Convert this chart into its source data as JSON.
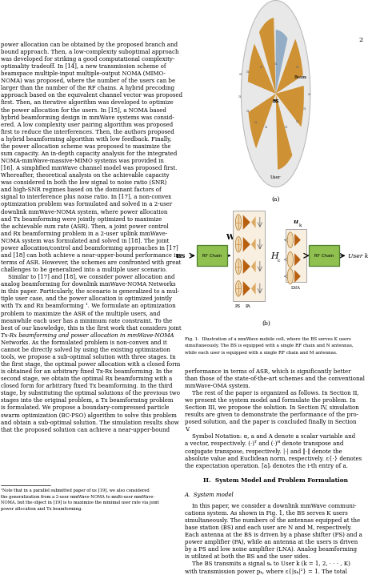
{
  "page_bg": "#ffffff",
  "page_number": "2",
  "left_col_lines": [
    "power allocation can be obtained by the proposed branch and",
    "bound approach. Then, a low-complexity suboptimal approach",
    "was developed for striking a good computational complexity-",
    "optimality tradeoff. In [14], a new transmission scheme of",
    "beamspace multiple-input multiple-output NOMA (MIMO-",
    "NOMA) was proposed, where the number of the users can be",
    "larger than the number of the RF chains. A hybrid precoding",
    "approach based on the equivalent channel vector was proposed",
    "first. Then, an iterative algorithm was developed to optimize",
    "the power allocation for the users. In [15], a NOMA based",
    "hybrid beamforming design in mmWave systems was consid-",
    "ered. A low complexity user pairing algorithm was proposed",
    "first to reduce the interferences. Then, the authors proposed",
    "a hybrid beamforming algorithm with low feedback. Finally,",
    "the power allocation scheme was proposed to maximize the",
    "sum capacity. An in-depth capacity analysis for the integrated",
    "NOMA-mmWave-massive-MIMO systems was provided in",
    "[16]. A simplified mmWave channel model was proposed first.",
    "Whereafter, theoretical analysis on the achievable capacity",
    "was considered in both the low signal to noise ratio (SNR)",
    "and high-SNR regimes based on the dominant factors of",
    "signal to interference plus noise ratio. In [17], a non-convex",
    "optimization problem was formulated and solved in a 2-user",
    "downlink mmWave-NOMA system, where power allocation",
    "and Tx beamforming were jointly optimized to maximize",
    "the achievable sum rate (ASR). Then, a joint power control",
    "and Rx beamforming problem in a 2-user uplink mmWave-",
    "NOMA system was formulated and solved in [18]. The joint",
    "power allocation/control and beamforming approaches in [17]",
    "and [18] can both achieve a near-upper-bound performance in",
    "terms of ASR. However, the schemes are confronted with great",
    "challenges to be generalized into a multiple user scenario.",
    "    Similar to [17] and [18], we consider power allocation and",
    "analog beamforming for downlink mmWave-NOMA Networks",
    "in this paper. Particularly, the scenario is generalized to a mul-",
    "tiple user case, and the power allocation is optimized jointly",
    "with Tx and Rx beamforming ¹. We formulate an optimization",
    "problem to maximize the ASR of the multiple users, and",
    "meanwhile each user has a minimum rate constraint. To the",
    "best of our knowledge, this is the first work that considers joint",
    "Tx-Rx beamforming and power allocation in mmWave-NOMA",
    "Networks. As the formulated problem is non-convex and it",
    "cannot be directly solved by using the existing optimization",
    "tools, we propose a sub-optimal solution with three stages. In",
    "the first stage, the optimal power allocation with a closed form",
    "is obtained for an arbitrary fixed Tx-Rx beamforming. In the",
    "second stage, we obtain the optimal Rx beamforming with a",
    "closed form for arbitrary fixed Tx beamforming. In the third",
    "stage, by substituting the optimal solutions of the previous two",
    "stages into the original problem, a Tx beamforming problem",
    "is formulated. We propose a boundary-compressed particle",
    "swarm optimization (BC-PSO) algorithm to solve this problem",
    "and obtain a sub-optimal solution. The simulation results show",
    "that the proposed solution can achieve a near-upper-bound"
  ],
  "left_col_italic_lines": [
    "Tx-Rx beamforming and power allocation in mmWave-NOMA"
  ],
  "footnote_lines": [
    "¹Note that in a parallel submitted paper of us [19], we also considered",
    "the generalization from a 2-user mmWave-NOMA to multi-user mmWave-",
    "NOMA, but the object in [19] is to maximize the minimal user rate via joint",
    "power allocation and Tx beamforming."
  ],
  "right_top_lines": [
    "performance in terms of ASR, which is significantly better",
    "than those of the state-of-the-art schemes and the conventional",
    "mmWave-OMA system.",
    "    The rest of the paper is organized as follows. In Section II,",
    "we present the system model and formulate the problem. In",
    "Section III, we propose the solution. In Section IV, simulation",
    "results are given to demonstrate the performance of the pro-",
    "posed solution, and the paper is concluded finally in Section",
    "V.",
    "    Symbol Notation: α, a and A denote a scalar variable and",
    "a vector, respectively. (·)ᵀ and (·)ᴴ denote transpose and",
    "conjugate transpose, respectively. |·| and ‖·‖ denote the",
    "absolute value and Euclidean norm, respectively. ε{·} denotes",
    "the expectation operation. [a]ᵢ denotes the i-th entry of a."
  ],
  "section_header": "II.  Sʟstem Model and Problem Formulation",
  "section_header_plain": "II.  System Model and Problem Formulation",
  "subsection_header": "A.  System model",
  "right_bottom_lines": [
    "    In this paper, we consider a downlink mmWave communi-",
    "cations system. As shown in Fig. 1, the BS serves K users",
    "simultaneously. The numbers of the antennas equipped at the",
    "base station (BS) and each user are N and M, respectively.",
    "Each antenna at the BS is driven by a phase shifter (PS) and a",
    "power amplifier (PA), while an antenna at the users is driven",
    "by a PS and low noise amplifier (LNA). Analog beamforming",
    "is utilized at both the BS and the user sides.",
    "    The BS transmits a signal sₖ to User k (k = 1, 2, · · · , K)",
    "with transmission power pₖ, where ε{|sₖ|²} = 1. The total"
  ],
  "fig_caption_lines": [
    "Fig. 1.  Illustration of a mmWave mobile cell, where the BS serves K users",
    "simultaneously. The BS is equipped with a single RF chain and N antennas,",
    "while each user is equipped with a single RF chain and M antennas."
  ],
  "beam_orange": "#cc8820",
  "beam_blue": "#7799bb",
  "circle_fill": "#e8e8e8",
  "circle_edge": "#bbbbbb",
  "rf_green_face": "#90c050",
  "rf_green_edge": "#508030",
  "ant_orange1": "#b86010",
  "ant_orange2": "#d4a060",
  "font_size_body": 5.0,
  "font_size_small": 4.2,
  "font_size_caption": 4.5,
  "font_size_section": 5.5,
  "lh": 0.0148
}
